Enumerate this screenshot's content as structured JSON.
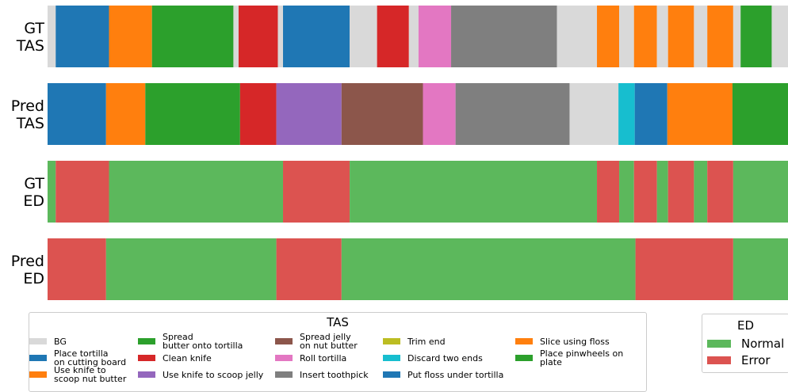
{
  "colors": {
    "BG": "#d9d9d9",
    "Place tortilla on cutting board": "#1f77b4",
    "Use knife to scoop nut butter": "#ff7f0e",
    "Spread butter onto tortilla": "#2ca02c",
    "Clean knife": "#d62728",
    "Use knife to scoop jelly": "#9467bd",
    "Spread jelly on nut butter": "#8c564b",
    "Roll tortilla": "#e377c2",
    "Insert toothpick": "#7f7f7f",
    "Trim end": "#bcbd22",
    "Discard two ends": "#17becf",
    "Put floss under tortilla": "#1f77b4",
    "Slice using floss": "#ff7f0e",
    "Place pinwheels on plate": "#2ca02c",
    "Normal": "#5cb85c",
    "Error": "#dc5350"
  },
  "chart_data": {
    "type": "segment_timeline",
    "rows": [
      {
        "label": "GT\nTAS",
        "segments": [
          [
            "BG",
            0.0,
            1.1
          ],
          [
            "Place tortilla on cutting board",
            1.1,
            8.3
          ],
          [
            "Use knife to scoop nut butter",
            8.3,
            14.1
          ],
          [
            "Spread butter onto tortilla",
            14.1,
            25.1
          ],
          [
            "BG",
            25.1,
            25.8
          ],
          [
            "Clean knife",
            25.8,
            31.1
          ],
          [
            "BG",
            31.1,
            31.8
          ],
          [
            "Place tortilla on cutting board",
            31.8,
            40.8
          ],
          [
            "BG",
            40.8,
            44.5
          ],
          [
            "Clean knife",
            44.5,
            48.8
          ],
          [
            "BG",
            48.8,
            50.1
          ],
          [
            "Roll tortilla",
            50.1,
            54.5
          ],
          [
            "Insert toothpick",
            54.5,
            68.8
          ],
          [
            "BG",
            68.8,
            74.2
          ],
          [
            "Slice using floss",
            74.2,
            77.2
          ],
          [
            "BG",
            77.2,
            79.2
          ],
          [
            "Slice using floss",
            79.2,
            82.3
          ],
          [
            "BG",
            82.3,
            83.8
          ],
          [
            "Slice using floss",
            83.8,
            87.3
          ],
          [
            "BG",
            87.3,
            89.1
          ],
          [
            "Slice using floss",
            89.1,
            92.6
          ],
          [
            "BG",
            92.6,
            93.6
          ],
          [
            "Place pinwheels on plate",
            93.6,
            97.8
          ],
          [
            "BG",
            97.8,
            100.0
          ]
        ]
      },
      {
        "label": "Pred\nTAS",
        "segments": [
          [
            "Place tortilla on cutting board",
            0.0,
            7.9
          ],
          [
            "Use knife to scoop nut butter",
            7.9,
            13.2
          ],
          [
            "Spread butter onto tortilla",
            13.2,
            26.0
          ],
          [
            "Clean knife",
            26.0,
            30.9
          ],
          [
            "Use knife to scoop jelly",
            30.9,
            39.7
          ],
          [
            "Spread jelly on nut butter",
            39.7,
            50.7
          ],
          [
            "Roll tortilla",
            50.7,
            55.1
          ],
          [
            "Insert toothpick",
            55.1,
            70.5
          ],
          [
            "BG",
            70.5,
            77.1
          ],
          [
            "Discard two ends",
            77.1,
            79.3
          ],
          [
            "Put floss under tortilla",
            79.3,
            83.7
          ],
          [
            "Slice using floss",
            83.7,
            92.5
          ],
          [
            "Place pinwheels on plate",
            92.5,
            100.0
          ]
        ]
      },
      {
        "label": "GT\nED",
        "segments": [
          [
            "Normal",
            0.0,
            1.1
          ],
          [
            "Error",
            1.1,
            8.3
          ],
          [
            "Normal",
            8.3,
            31.8
          ],
          [
            "Error",
            31.8,
            40.8
          ],
          [
            "Normal",
            40.8,
            74.2
          ],
          [
            "Error",
            74.2,
            77.2
          ],
          [
            "Normal",
            77.2,
            79.2
          ],
          [
            "Error",
            79.2,
            82.3
          ],
          [
            "Normal",
            82.3,
            83.8
          ],
          [
            "Error",
            83.8,
            87.3
          ],
          [
            "Normal",
            87.3,
            89.1
          ],
          [
            "Error",
            89.1,
            92.6
          ],
          [
            "Normal",
            92.6,
            100.0
          ]
        ]
      },
      {
        "label": "Pred\nED",
        "segments": [
          [
            "Error",
            0.0,
            7.9
          ],
          [
            "Normal",
            7.9,
            30.9
          ],
          [
            "Error",
            30.9,
            39.7
          ],
          [
            "Normal",
            39.7,
            79.4
          ],
          [
            "Error",
            79.4,
            92.6
          ],
          [
            "Normal",
            92.6,
            100.0
          ]
        ]
      }
    ],
    "legends": [
      {
        "title": "TAS",
        "entries": [
          [
            "BG",
            "BG"
          ],
          [
            "Place tortilla on cutting board",
            "Place tortilla\non cutting board"
          ],
          [
            "Use knife to scoop nut butter",
            "Use knife to\nscoop nut butter"
          ],
          [
            "Spread butter onto tortilla",
            "Spread\nbutter onto tortilla"
          ],
          [
            "Clean knife",
            "Clean knife"
          ],
          [
            "Use knife to scoop jelly",
            "Use knife to scoop jelly"
          ],
          [
            "Spread jelly on nut butter",
            "Spread jelly\non nut butter"
          ],
          [
            "Roll tortilla",
            "Roll tortilla"
          ],
          [
            "Insert toothpick",
            "Insert toothpick"
          ],
          [
            "Trim end",
            "Trim end"
          ],
          [
            "Discard two ends",
            "Discard two ends"
          ],
          [
            "Put floss under tortilla",
            "Put floss under tortilla"
          ],
          [
            "Slice using floss",
            "Slice using floss"
          ],
          [
            "Place pinwheels on plate",
            "Place pinwheels on plate"
          ]
        ]
      },
      {
        "title": "ED",
        "entries": [
          [
            "Normal",
            "Normal"
          ],
          [
            "Error",
            "Error"
          ]
        ]
      }
    ]
  }
}
